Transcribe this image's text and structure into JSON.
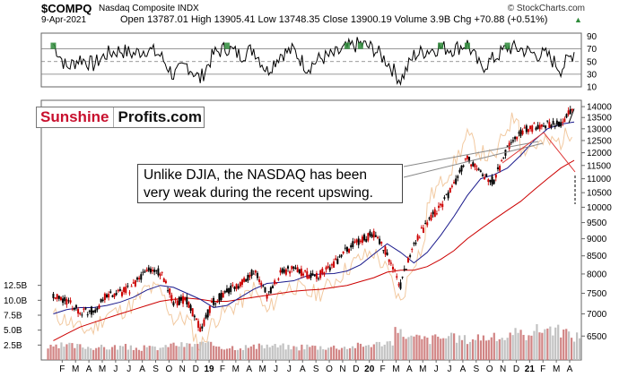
{
  "header": {
    "symbol": "$COMPQ",
    "name": "Nasdaq Composite INDX",
    "date": "9-Apr-2021",
    "ohlc": "Open 13787.01  High 13905.41  Low 13748.35  Close 13900.19  Volume 3.9B  Chg +70.88 (+0.51%)",
    "chg_arrow": "▲",
    "copyright": "© StockCharts.com"
  },
  "brand": {
    "part1": "Sunshine",
    "part2": "Profits.com"
  },
  "annotation": "Unlike DJIA, the NASDAQ has been very weak during the recent upswing.",
  "colors": {
    "price": "#000000",
    "up_candle": "#000000",
    "down_candle": "#cc0000",
    "ma50": "#1a1a8c",
    "ma200": "#cc0000",
    "ratio": "#f2c9a0",
    "volume": "#cc7777",
    "rsi_fill": "#2e8b3a",
    "trendline": "#888888"
  },
  "chart_data": [
    {
      "type": "line",
      "panel": "rsi",
      "ylim": [
        10,
        95
      ],
      "y_ticks": [
        90,
        70,
        50,
        30,
        10
      ],
      "reference_lines": [
        70,
        50,
        30
      ],
      "x": [
        "2018-01",
        "2018-02",
        "2018-03",
        "2018-04",
        "2018-05",
        "2018-06",
        "2018-07",
        "2018-08",
        "2018-09",
        "2018-10",
        "2018-11",
        "2018-12",
        "2019-01",
        "2019-02",
        "2019-03",
        "2019-04",
        "2019-05",
        "2019-06",
        "2019-07",
        "2019-08",
        "2019-09",
        "2019-10",
        "2019-11",
        "2019-12",
        "2020-01",
        "2020-02",
        "2020-03",
        "2020-04",
        "2020-05",
        "2020-06",
        "2020-07",
        "2020-08",
        "2020-09",
        "2020-10",
        "2020-11",
        "2020-12",
        "2021-01",
        "2021-02",
        "2021-03",
        "2021-04"
      ],
      "values": [
        78,
        40,
        55,
        45,
        62,
        68,
        62,
        70,
        60,
        28,
        45,
        22,
        62,
        72,
        60,
        70,
        35,
        62,
        68,
        40,
        55,
        60,
        72,
        78,
        70,
        50,
        20,
        60,
        68,
        72,
        70,
        78,
        40,
        55,
        72,
        70,
        62,
        60,
        38,
        65
      ]
    },
    {
      "type": "line",
      "panel": "price",
      "ylim": [
        6000,
        14300
      ],
      "y_ticks": [
        14000,
        13500,
        13000,
        12500,
        12000,
        11500,
        11000,
        10500,
        10000,
        9500,
        9000,
        8500,
        8000,
        7500,
        7000,
        6500
      ],
      "x_ticks": [
        "F",
        "M",
        "A",
        "M",
        "J",
        "J",
        "A",
        "S",
        "O",
        "N",
        "D",
        "19",
        "F",
        "M",
        "A",
        "M",
        "J",
        "J",
        "A",
        "S",
        "O",
        "N",
        "D",
        "20",
        "F",
        "M",
        "A",
        "M",
        "J",
        "J",
        "A",
        "S",
        "O",
        "N",
        "D",
        "21",
        "F",
        "M",
        "A"
      ],
      "x": [
        "2018-01",
        "2018-02",
        "2018-03",
        "2018-04",
        "2018-05",
        "2018-06",
        "2018-07",
        "2018-08",
        "2018-09",
        "2018-10",
        "2018-11",
        "2018-12",
        "2019-01",
        "2019-02",
        "2019-03",
        "2019-04",
        "2019-05",
        "2019-06",
        "2019-07",
        "2019-08",
        "2019-09",
        "2019-10",
        "2019-11",
        "2019-12",
        "2020-01",
        "2020-02",
        "2020-03",
        "2020-04",
        "2020-05",
        "2020-06",
        "2020-07",
        "2020-08",
        "2020-09",
        "2020-10",
        "2020-11",
        "2020-12",
        "2021-01",
        "2021-02",
        "2021-03",
        "2021-04"
      ],
      "series": [
        {
          "values": [
            7400,
            7300,
            7060,
            7070,
            7440,
            7510,
            7670,
            8110,
            8050,
            7300,
            7330,
            6640,
            7280,
            7530,
            7730,
            8100,
            7450,
            8010,
            8180,
            7960,
            8000,
            8290,
            8670,
            8970,
            9150,
            8570,
            7700,
            8890,
            9490,
            10060,
            10750,
            11780,
            11170,
            10900,
            12200,
            12880,
            13070,
            13190,
            13250,
            13900
          ]
        },
        {
          "values": [
            7000,
            7100,
            7150,
            7150,
            7200,
            7280,
            7400,
            7580,
            7700,
            7650,
            7500,
            7350,
            7150,
            7200,
            7400,
            7600,
            7750,
            7780,
            7820,
            7950,
            8000,
            8010,
            8080,
            8250,
            8550,
            8850,
            8600,
            8300,
            8600,
            9100,
            9700,
            10400,
            11000,
            11150,
            11400,
            11900,
            12500,
            13000,
            13200,
            13300
          ]
        },
        {
          "values": [
            6400,
            6550,
            6700,
            6800,
            6900,
            7000,
            7100,
            7200,
            7300,
            7350,
            7380,
            7350,
            7300,
            7300,
            7350,
            7400,
            7450,
            7500,
            7550,
            7580,
            7600,
            7650,
            7700,
            7800,
            7900,
            8050,
            8100,
            8100,
            8200,
            8400,
            8650,
            9000,
            9300,
            9600,
            9900,
            10200,
            10600,
            11000,
            11400,
            11700
          ]
        }
      ]
    },
    {
      "type": "bar",
      "panel": "volume",
      "ylim": [
        0,
        13500000000
      ],
      "y_ticks": [
        "12.5B",
        "10.0B",
        "7.5B",
        "5.0B",
        "2.5B"
      ],
      "x": [
        "2018-01",
        "2018-02",
        "2018-03",
        "2018-04",
        "2018-05",
        "2018-06",
        "2018-07",
        "2018-08",
        "2018-09",
        "2018-10",
        "2018-11",
        "2018-12",
        "2019-01",
        "2019-02",
        "2019-03",
        "2019-04",
        "2019-05",
        "2019-06",
        "2019-07",
        "2019-08",
        "2019-09",
        "2019-10",
        "2019-11",
        "2019-12",
        "2020-01",
        "2020-02",
        "2020-03",
        "2020-04",
        "2020-05",
        "2020-06",
        "2020-07",
        "2020-08",
        "2020-09",
        "2020-10",
        "2020-11",
        "2020-12",
        "2021-01",
        "2021-02",
        "2021-03",
        "2021-04"
      ],
      "values": [
        2100000000,
        2400000000,
        2300000000,
        2200000000,
        2100000000,
        2200000000,
        2000000000,
        2000000000,
        2100000000,
        2600000000,
        2500000000,
        2700000000,
        2500000000,
        2200000000,
        2200000000,
        2200000000,
        2400000000,
        2300000000,
        2100000000,
        2300000000,
        2200000000,
        2200000000,
        2200000000,
        2400000000,
        2700000000,
        3000000000,
        4500000000,
        3700000000,
        3500000000,
        3800000000,
        3700000000,
        3500000000,
        3900000000,
        3700000000,
        3900000000,
        4300000000,
        5000000000,
        5400000000,
        4800000000,
        4000000000
      ]
    }
  ]
}
